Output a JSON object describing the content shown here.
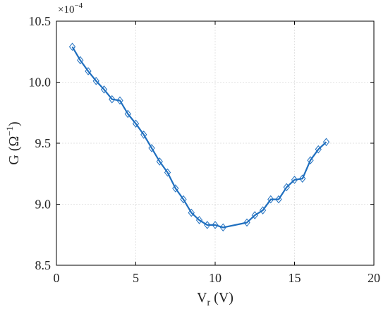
{
  "chart_data": {
    "type": "line",
    "title": "",
    "xlabel": {
      "main": "V",
      "sub": "r",
      "unit": " (V)"
    },
    "ylabel": {
      "main": "G (Ω",
      "sup": "−1",
      "end": ")"
    },
    "y_multiplier": {
      "base": "×10",
      "exp": "−4"
    },
    "xlim": [
      0,
      20
    ],
    "ylim": [
      8.5,
      10.5
    ],
    "x_ticks": [
      "0",
      "5",
      "10",
      "15",
      "20"
    ],
    "y_ticks": [
      "8.5",
      "9.0",
      "9.5",
      "10.0",
      "10.5"
    ],
    "grid": true,
    "colors": {
      "series": "#1f6fbf",
      "frame": "#000000",
      "grid": "#e3e3e3"
    },
    "series": [
      {
        "marker": "diamond",
        "x": [
          1.0,
          1.5,
          2.0,
          2.5,
          3.0,
          3.5,
          4.0,
          4.5,
          5.0,
          5.5,
          6.0,
          6.5,
          7.0,
          7.5,
          8.0,
          8.5,
          9.0,
          9.5,
          10.0,
          10.5,
          12.0,
          12.5,
          13.0,
          13.5,
          14.0,
          14.5,
          15.0,
          15.5,
          16.0,
          16.5,
          17.0
        ],
        "y": [
          10.29,
          10.18,
          10.09,
          10.01,
          9.94,
          9.86,
          9.85,
          9.74,
          9.66,
          9.57,
          9.46,
          9.35,
          9.26,
          9.13,
          9.04,
          8.93,
          8.87,
          8.83,
          8.83,
          8.81,
          8.85,
          8.91,
          8.95,
          9.04,
          9.04,
          9.14,
          9.2,
          9.21,
          9.36,
          9.45,
          9.51
        ]
      }
    ]
  }
}
